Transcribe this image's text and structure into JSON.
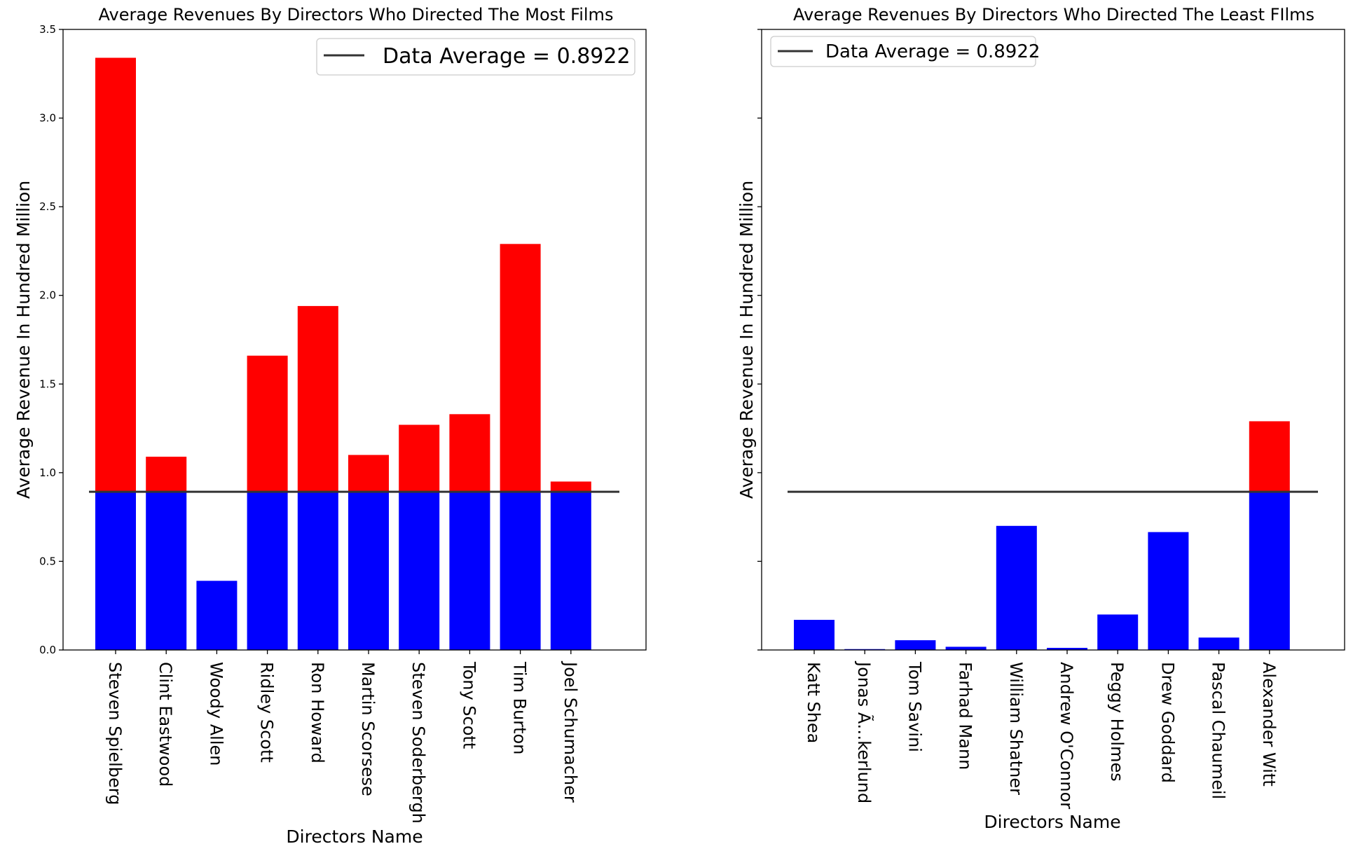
{
  "chart_data": [
    {
      "type": "bar",
      "title": "Average Revenues By Directors Who Directed The Most Films",
      "xlabel": "Directors Name",
      "ylabel": "Average Revenue In Hundred Million",
      "ylim": [
        0,
        3.5
      ],
      "yticks": [
        0.0,
        0.5,
        1.0,
        1.5,
        2.0,
        2.5,
        3.0,
        3.5
      ],
      "ytick_labels": [
        "0.0",
        "0.5",
        "1.0",
        "1.5",
        "2.0",
        "2.5",
        "3.0",
        "3.5"
      ],
      "categories": [
        "Steven Spielberg",
        "Clint Eastwood",
        "Woody Allen",
        "Ridley Scott",
        "Ron Howard",
        "Martin Scorsese",
        "Steven Soderbergh",
        "Tony Scott",
        "Tim Burton",
        "Joel Schumacher"
      ],
      "values": [
        3.34,
        1.09,
        0.39,
        1.66,
        1.94,
        1.1,
        1.27,
        1.33,
        2.29,
        0.95
      ],
      "reference_line": {
        "value": 0.8922,
        "label": "Data Average = 0.8922",
        "color": "#333333"
      },
      "colors": {
        "above_average": "#ff0000",
        "below_average": "#0000ff"
      },
      "legend_position": "top-right",
      "show_ytick_labels": true,
      "grid": false
    },
    {
      "type": "bar",
      "title": "Average Revenues By Directors Who Directed The Least FIlms",
      "xlabel": "Directors Name",
      "ylabel": "Average Revenue In Hundred Million",
      "ylim": [
        0,
        3.5
      ],
      "yticks": [
        0.0,
        0.5,
        1.0,
        1.5,
        2.0,
        2.5,
        3.0,
        3.5
      ],
      "ytick_labels": [],
      "categories": [
        "Katt Shea",
        "Jonas Ã…kerlund",
        "Tom Savini",
        "Farhad Mann",
        "William Shatner",
        "Andrew O'Connor",
        "Peggy Holmes",
        "Drew Goddard",
        "Pascal Chaumeil",
        "Alexander Witt"
      ],
      "values": [
        0.17,
        0.005,
        0.055,
        0.018,
        0.7,
        0.012,
        0.2,
        0.665,
        0.07,
        1.29
      ],
      "reference_line": {
        "value": 0.8922,
        "label": "Data Average = 0.8922",
        "color": "#333333"
      },
      "colors": {
        "above_average": "#ff0000",
        "below_average": "#0000ff"
      },
      "legend_position": "top-left",
      "show_ytick_labels": false,
      "grid": false
    }
  ]
}
